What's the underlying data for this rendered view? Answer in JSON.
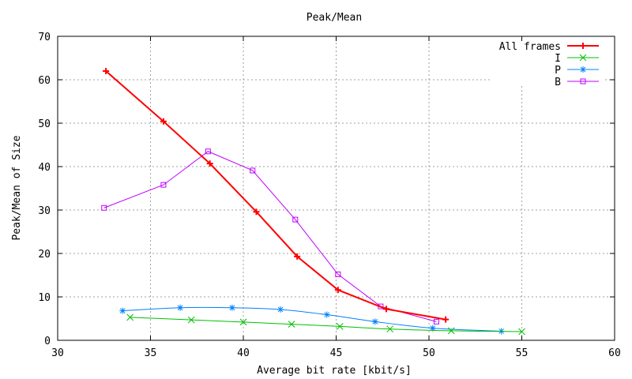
{
  "chart_data": {
    "type": "line",
    "title": "Peak/Mean",
    "xlabel": "Average bit rate [kbit/s]",
    "ylabel": "Peak/Mean of Size",
    "xlim": [
      30,
      60
    ],
    "ylim": [
      0,
      70
    ],
    "xticks": [
      30,
      35,
      40,
      45,
      50,
      55,
      60
    ],
    "yticks": [
      0,
      10,
      20,
      30,
      40,
      50,
      60,
      70
    ],
    "grid": true,
    "legend_position": "top-right",
    "series": [
      {
        "name": "All frames",
        "color": "#ff0000",
        "marker": "plus",
        "x": [
          32.6,
          35.7,
          38.2,
          40.7,
          42.9,
          45.1,
          47.7,
          50.9
        ],
        "y": [
          62.0,
          50.4,
          40.7,
          29.6,
          19.3,
          11.6,
          7.2,
          4.8
        ]
      },
      {
        "name": "I",
        "color": "#00c000",
        "marker": "cross",
        "x": [
          33.9,
          37.2,
          40.0,
          42.6,
          45.2,
          47.9,
          51.2,
          55.0
        ],
        "y": [
          5.3,
          4.7,
          4.2,
          3.7,
          3.2,
          2.6,
          2.2,
          2.0
        ]
      },
      {
        "name": "P",
        "color": "#0080ff",
        "marker": "star",
        "x": [
          33.5,
          36.6,
          39.4,
          42.0,
          44.5,
          47.1,
          50.2,
          53.9
        ],
        "y": [
          6.8,
          7.5,
          7.5,
          7.1,
          5.9,
          4.3,
          2.8,
          2.1
        ]
      },
      {
        "name": "B",
        "color": "#c000ff",
        "marker": "square",
        "x": [
          32.5,
          35.7,
          38.1,
          40.5,
          42.8,
          45.1,
          47.4,
          50.4
        ],
        "y": [
          30.5,
          35.8,
          43.5,
          39.1,
          27.8,
          15.2,
          7.8,
          4.3
        ]
      }
    ]
  }
}
